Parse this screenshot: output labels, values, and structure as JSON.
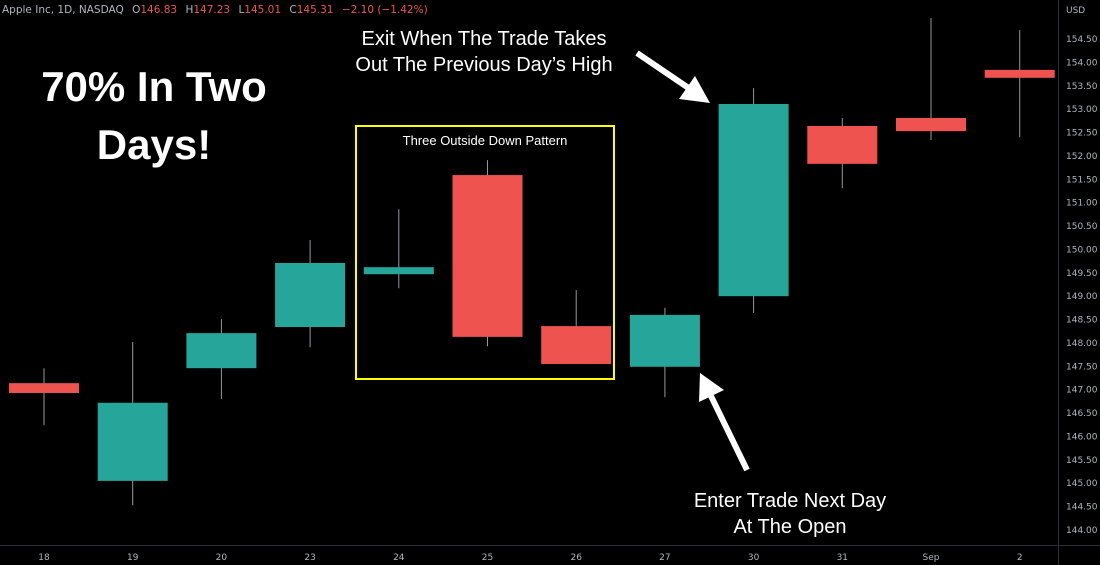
{
  "header": {
    "symbol": "Apple Inc, 1D, NASDAQ",
    "open_label": "O",
    "open": "146.83",
    "high_label": "H",
    "high": "147.23",
    "low_label": "L",
    "low": "145.01",
    "close_label": "C",
    "close": "145.31",
    "change": "−2.10 (−1.42%)"
  },
  "annotations": {
    "headline": "70% In Two Days!",
    "exit": [
      "Exit When The Trade Takes",
      "Out The Previous Day’s High"
    ],
    "enter": [
      "Enter Trade Next Day",
      "At The Open"
    ],
    "pattern_box": "Three Outside Down Pattern"
  },
  "colors": {
    "up": "#26a69a",
    "down": "#ef5350",
    "box": "#ffff00",
    "background": "#000000"
  },
  "chart_data": {
    "type": "candlestick",
    "currency": "USD",
    "categories": [
      "18",
      "19",
      "20",
      "23",
      "24",
      "25",
      "26",
      "27",
      "30",
      "31",
      "Sep",
      "2"
    ],
    "ohlc": [
      {
        "o": 147.14,
        "h": 147.46,
        "l": 146.24,
        "c": 146.93
      },
      {
        "o": 145.05,
        "h": 148.02,
        "l": 144.53,
        "c": 146.72
      },
      {
        "o": 147.46,
        "h": 148.51,
        "l": 146.8,
        "c": 148.21
      },
      {
        "o": 148.34,
        "h": 150.2,
        "l": 147.91,
        "c": 149.71
      },
      {
        "o": 149.47,
        "h": 150.86,
        "l": 149.17,
        "c": 149.62
      },
      {
        "o": 151.59,
        "h": 151.91,
        "l": 147.93,
        "c": 148.13
      },
      {
        "o": 148.36,
        "h": 149.13,
        "l": 147.55,
        "c": 147.55
      },
      {
        "o": 147.49,
        "h": 148.75,
        "l": 146.84,
        "c": 148.6
      },
      {
        "o": 149.0,
        "h": 153.45,
        "l": 148.64,
        "c": 153.11
      },
      {
        "o": 152.64,
        "h": 152.81,
        "l": 151.31,
        "c": 151.83
      },
      {
        "o": 152.81,
        "h": 154.95,
        "l": 152.34,
        "c": 152.53
      },
      {
        "o": 153.84,
        "h": 154.69,
        "l": 152.4,
        "c": 153.67
      }
    ],
    "y_ticks": [
      "154.50",
      "154.00",
      "153.50",
      "153.00",
      "152.50",
      "152.00",
      "151.50",
      "151.00",
      "150.50",
      "150.00",
      "149.50",
      "149.00",
      "148.50",
      "148.00",
      "147.50",
      "147.00",
      "146.50",
      "146.00",
      "145.50",
      "145.00",
      "144.50",
      "144.00"
    ],
    "ylim": [
      144.0,
      154.5
    ],
    "grid": false
  }
}
